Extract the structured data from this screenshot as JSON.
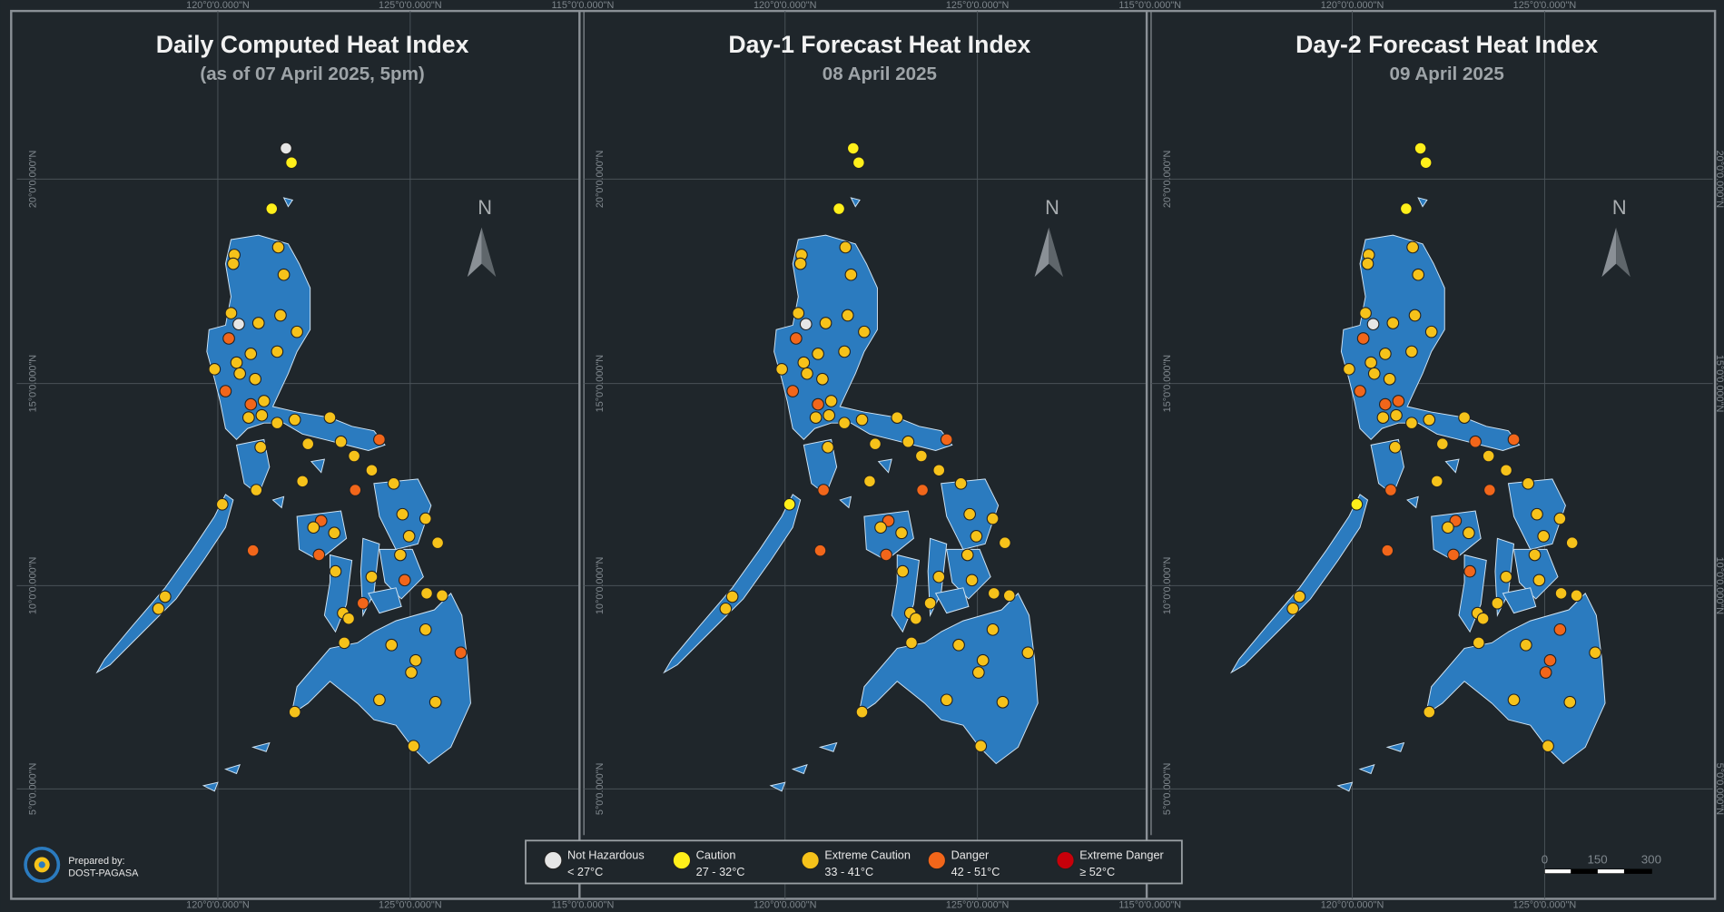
{
  "panels": [
    {
      "title": "Daily Computed Heat Index",
      "subtitle": "(as of 07 April 2025, 5pm)"
    },
    {
      "title": "Day-1 Forecast Heat Index",
      "subtitle": "08 April 2025"
    },
    {
      "title": "Day-2 Forecast Heat Index",
      "subtitle": "09 April 2025"
    }
  ],
  "north": "N",
  "graticule": {
    "top": [
      "120°0'0.000\"N",
      "125°0'0.000\"N",
      "115°0'0.000\"N"
    ],
    "side": [
      "20°0'0.000\"N",
      "15°0'0.000\"N",
      "10°0'0.000\"N",
      "5°0'0.000\"N"
    ]
  },
  "legend": [
    {
      "label": "Not Hazardous",
      "range": "< 27°C",
      "color": "#e6e6e6"
    },
    {
      "label": "Caution",
      "range": "27 - 32°C",
      "color": "#ffef1a"
    },
    {
      "label": "Extreme Caution",
      "range": "33 - 41°C",
      "color": "#f6c21a"
    },
    {
      "label": "Danger",
      "range": "42 - 51°C",
      "color": "#f2661a"
    },
    {
      "label": "Extreme Danger",
      "range": "≥ 52°C",
      "color": "#c8000a"
    }
  ],
  "credit": {
    "line1": "Prepared by:",
    "line2": "DOST-PAGASA"
  },
  "scale": [
    "0",
    "150",
    "300"
  ]
}
